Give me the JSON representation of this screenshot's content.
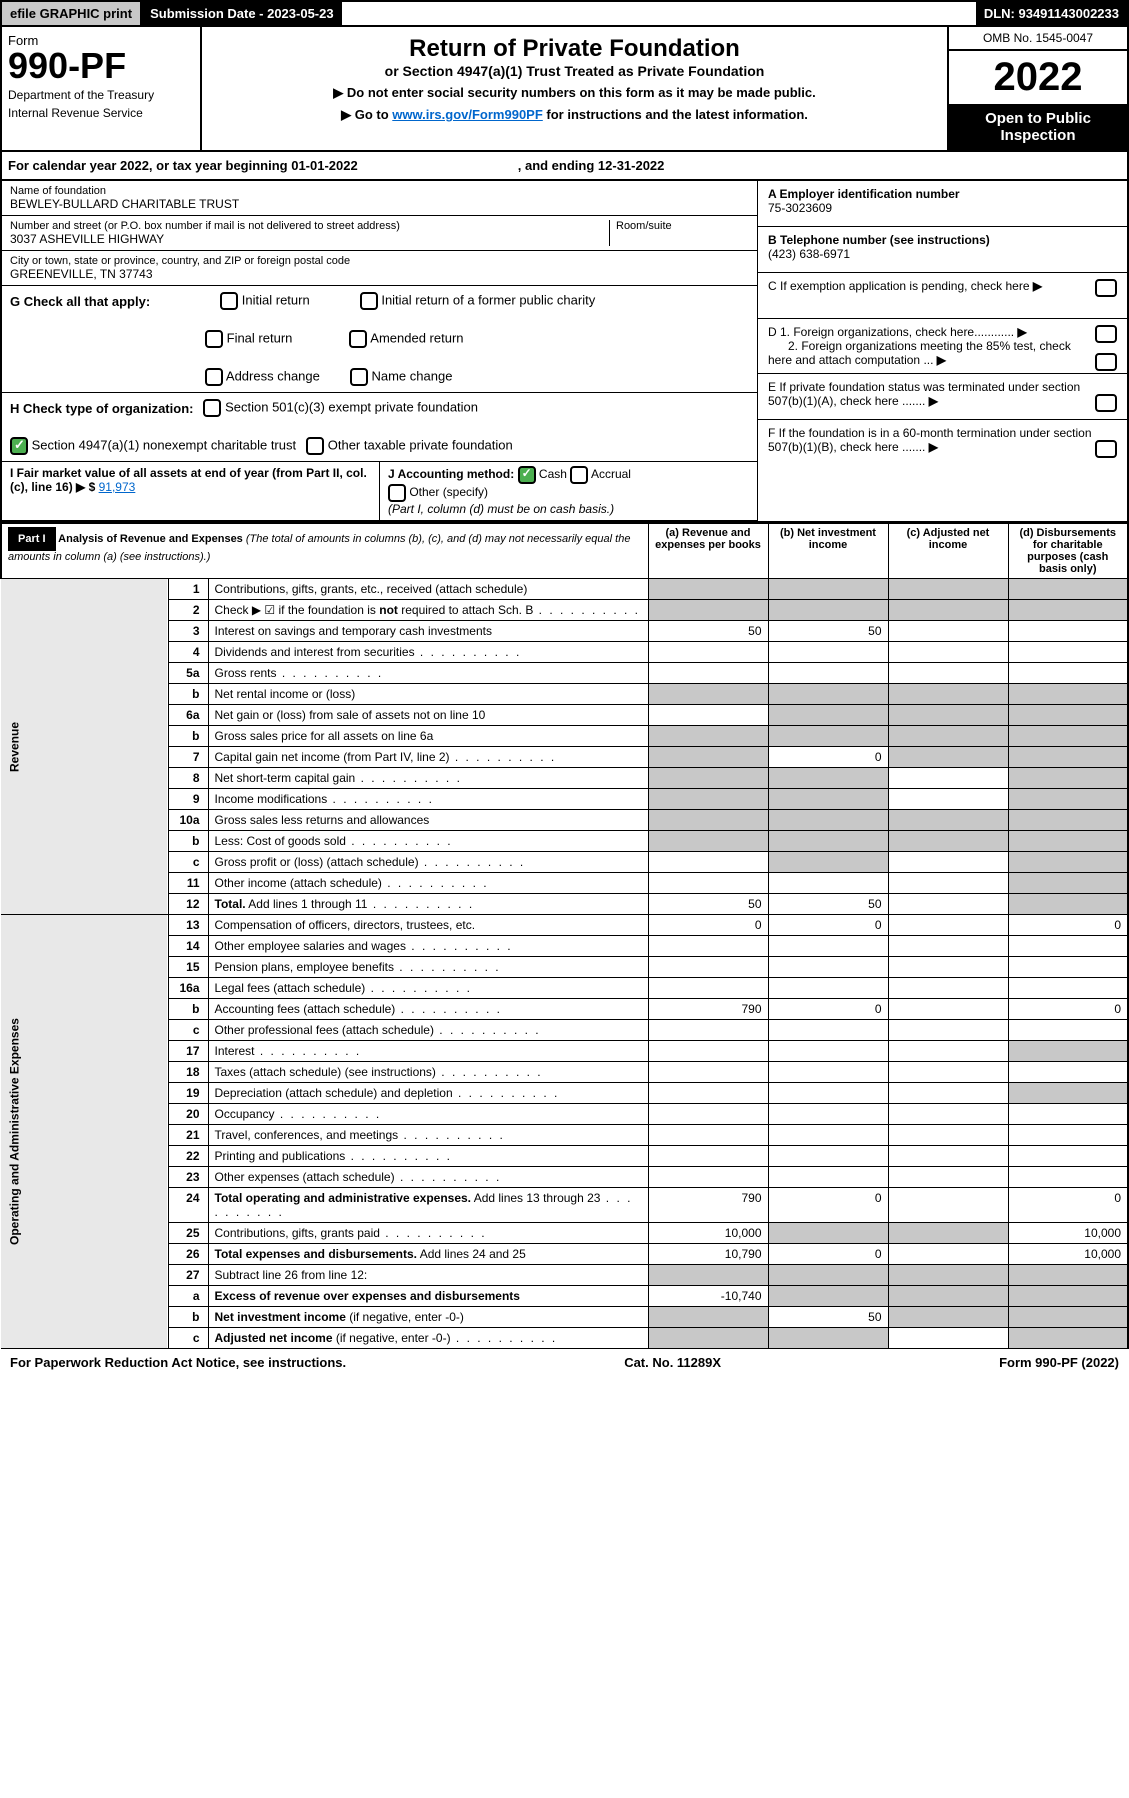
{
  "top": {
    "efile": "efile GRAPHIC print",
    "submission_label": "Submission Date - 2023-05-23",
    "dln": "DLN: 93491143002233"
  },
  "header": {
    "form_word": "Form",
    "form_number": "990-PF",
    "dept1": "Department of the Treasury",
    "dept2": "Internal Revenue Service",
    "title": "Return of Private Foundation",
    "subtitle": "or Section 4947(a)(1) Trust Treated as Private Foundation",
    "note1": "▶ Do not enter social security numbers on this form as it may be made public.",
    "note2_pre": "▶ Go to ",
    "note2_link": "www.irs.gov/Form990PF",
    "note2_post": " for instructions and the latest information.",
    "omb": "OMB No. 1545-0047",
    "year": "2022",
    "open": "Open to Public Inspection"
  },
  "calyear": {
    "text": "For calendar year 2022, or tax year beginning 01-01-2022",
    "ending": ", and ending 12-31-2022"
  },
  "foundation": {
    "name_label": "Name of foundation",
    "name": "BEWLEY-BULLARD CHARITABLE TRUST",
    "addr_label": "Number and street (or P.O. box number if mail is not delivered to street address)",
    "addr": "3037 ASHEVILLE HIGHWAY",
    "room_label": "Room/suite",
    "city_label": "City or town, state or province, country, and ZIP or foreign postal code",
    "city": "GREENEVILLE, TN  37743"
  },
  "right": {
    "a_label": "A Employer identification number",
    "a_val": "75-3023609",
    "b_label": "B Telephone number (see instructions)",
    "b_val": "(423) 638-6971",
    "c_label": "C If exemption application is pending, check here",
    "d1": "D 1. Foreign organizations, check here............",
    "d2": "2. Foreign organizations meeting the 85% test, check here and attach computation ...",
    "e": "E  If private foundation status was terminated under section 507(b)(1)(A), check here .......",
    "f": "F  If the foundation is in a 60-month termination under section 507(b)(1)(B), check here ......."
  },
  "g": {
    "label": "G Check all that apply:",
    "opts": [
      "Initial return",
      "Final return",
      "Address change",
      "Initial return of a former public charity",
      "Amended return",
      "Name change"
    ]
  },
  "h": {
    "label": "H Check type of organization:",
    "opt1": "Section 501(c)(3) exempt private foundation",
    "opt2": "Section 4947(a)(1) nonexempt charitable trust",
    "opt3": "Other taxable private foundation"
  },
  "i": {
    "label": "I Fair market value of all assets at end of year (from Part II, col. (c), line 16)",
    "val": "91,973"
  },
  "j": {
    "label": "J Accounting method:",
    "cash": "Cash",
    "accrual": "Accrual",
    "other": "Other (specify)",
    "note": "(Part I, column (d) must be on cash basis.)"
  },
  "part1": {
    "label": "Part I",
    "title": "Analysis of Revenue and Expenses",
    "note": "(The total of amounts in columns (b), (c), and (d) may not necessarily equal the amounts in column (a) (see instructions).)",
    "col_a": "(a)   Revenue and expenses per books",
    "col_b": "(b)   Net investment income",
    "col_c": "(c)   Adjusted net income",
    "col_d": "(d)   Disbursements for charitable purposes (cash basis only)"
  },
  "side": {
    "revenue": "Revenue",
    "expenses": "Operating and Administrative Expenses"
  },
  "rows": [
    {
      "n": "1",
      "d": "Contributions, gifts, grants, etc., received (attach schedule)",
      "a": "",
      "b": "",
      "c": "",
      "dd": "",
      "ga": true,
      "gb": true,
      "gc": true,
      "gd": true
    },
    {
      "n": "2",
      "d": "Check ▶ ☑ if the foundation is <b>not</b> required to attach Sch. B",
      "a": "",
      "b": "",
      "c": "",
      "dd": "",
      "ga": true,
      "gb": true,
      "gc": true,
      "gd": true,
      "dots": true
    },
    {
      "n": "3",
      "d": "Interest on savings and temporary cash investments",
      "a": "50",
      "b": "50",
      "c": "",
      "dd": ""
    },
    {
      "n": "4",
      "d": "Dividends and interest from securities",
      "a": "",
      "b": "",
      "c": "",
      "dd": "",
      "dots": true
    },
    {
      "n": "5a",
      "d": "Gross rents",
      "a": "",
      "b": "",
      "c": "",
      "dd": "",
      "dots": true
    },
    {
      "n": "b",
      "d": "Net rental income or (loss)",
      "a": "",
      "b": "",
      "c": "",
      "dd": "",
      "ga": true,
      "gb": true,
      "gc": true,
      "gd": true
    },
    {
      "n": "6a",
      "d": "Net gain or (loss) from sale of assets not on line 10",
      "a": "",
      "b": "",
      "c": "",
      "dd": "",
      "gb": true,
      "gc": true,
      "gd": true
    },
    {
      "n": "b",
      "d": "Gross sales price for all assets on line 6a",
      "a": "",
      "b": "",
      "c": "",
      "dd": "",
      "ga": true,
      "gb": true,
      "gc": true,
      "gd": true
    },
    {
      "n": "7",
      "d": "Capital gain net income (from Part IV, line 2)",
      "a": "",
      "b": "0",
      "c": "",
      "dd": "",
      "ga": true,
      "gc": true,
      "gd": true,
      "dots": true
    },
    {
      "n": "8",
      "d": "Net short-term capital gain",
      "a": "",
      "b": "",
      "c": "",
      "dd": "",
      "ga": true,
      "gb": true,
      "gd": true,
      "dots": true
    },
    {
      "n": "9",
      "d": "Income modifications",
      "a": "",
      "b": "",
      "c": "",
      "dd": "",
      "ga": true,
      "gb": true,
      "gd": true,
      "dots": true
    },
    {
      "n": "10a",
      "d": "Gross sales less returns and allowances",
      "a": "",
      "b": "",
      "c": "",
      "dd": "",
      "ga": true,
      "gb": true,
      "gc": true,
      "gd": true
    },
    {
      "n": "b",
      "d": "Less: Cost of goods sold",
      "a": "",
      "b": "",
      "c": "",
      "dd": "",
      "ga": true,
      "gb": true,
      "gc": true,
      "gd": true,
      "dots": true
    },
    {
      "n": "c",
      "d": "Gross profit or (loss) (attach schedule)",
      "a": "",
      "b": "",
      "c": "",
      "dd": "",
      "gb": true,
      "gd": true,
      "dots": true
    },
    {
      "n": "11",
      "d": "Other income (attach schedule)",
      "a": "",
      "b": "",
      "c": "",
      "dd": "",
      "gd": true,
      "dots": true
    },
    {
      "n": "12",
      "d": "<b>Total.</b> Add lines 1 through 11",
      "a": "50",
      "b": "50",
      "c": "",
      "dd": "",
      "gd": true,
      "dots": true
    },
    {
      "n": "13",
      "d": "Compensation of officers, directors, trustees, etc.",
      "a": "0",
      "b": "0",
      "c": "",
      "dd": "0"
    },
    {
      "n": "14",
      "d": "Other employee salaries and wages",
      "a": "",
      "b": "",
      "c": "",
      "dd": "",
      "dots": true
    },
    {
      "n": "15",
      "d": "Pension plans, employee benefits",
      "a": "",
      "b": "",
      "c": "",
      "dd": "",
      "dots": true
    },
    {
      "n": "16a",
      "d": "Legal fees (attach schedule)",
      "a": "",
      "b": "",
      "c": "",
      "dd": "",
      "dots": true
    },
    {
      "n": "b",
      "d": "Accounting fees (attach schedule)",
      "a": "790",
      "b": "0",
      "c": "",
      "dd": "0",
      "dots": true
    },
    {
      "n": "c",
      "d": "Other professional fees (attach schedule)",
      "a": "",
      "b": "",
      "c": "",
      "dd": "",
      "dots": true
    },
    {
      "n": "17",
      "d": "Interest",
      "a": "",
      "b": "",
      "c": "",
      "dd": "",
      "gd": true,
      "dots": true
    },
    {
      "n": "18",
      "d": "Taxes (attach schedule) (see instructions)",
      "a": "",
      "b": "",
      "c": "",
      "dd": "",
      "dots": true
    },
    {
      "n": "19",
      "d": "Depreciation (attach schedule) and depletion",
      "a": "",
      "b": "",
      "c": "",
      "dd": "",
      "gd": true,
      "dots": true
    },
    {
      "n": "20",
      "d": "Occupancy",
      "a": "",
      "b": "",
      "c": "",
      "dd": "",
      "dots": true
    },
    {
      "n": "21",
      "d": "Travel, conferences, and meetings",
      "a": "",
      "b": "",
      "c": "",
      "dd": "",
      "dots": true
    },
    {
      "n": "22",
      "d": "Printing and publications",
      "a": "",
      "b": "",
      "c": "",
      "dd": "",
      "dots": true
    },
    {
      "n": "23",
      "d": "Other expenses (attach schedule)",
      "a": "",
      "b": "",
      "c": "",
      "dd": "",
      "dots": true
    },
    {
      "n": "24",
      "d": "<b>Total operating and administrative expenses.</b> Add lines 13 through 23",
      "a": "790",
      "b": "0",
      "c": "",
      "dd": "0",
      "dots": true
    },
    {
      "n": "25",
      "d": "Contributions, gifts, grants paid",
      "a": "10,000",
      "b": "",
      "c": "",
      "dd": "10,000",
      "gb": true,
      "gc": true,
      "dots": true
    },
    {
      "n": "26",
      "d": "<b>Total expenses and disbursements.</b> Add lines 24 and 25",
      "a": "10,790",
      "b": "0",
      "c": "",
      "dd": "10,000"
    },
    {
      "n": "27",
      "d": "Subtract line 26 from line 12:",
      "a": "",
      "b": "",
      "c": "",
      "dd": "",
      "ga": true,
      "gb": true,
      "gc": true,
      "gd": true
    },
    {
      "n": "a",
      "d": "<b>Excess of revenue over expenses and disbursements</b>",
      "a": "-10,740",
      "b": "",
      "c": "",
      "dd": "",
      "gb": true,
      "gc": true,
      "gd": true
    },
    {
      "n": "b",
      "d": "<b>Net investment income</b> (if negative, enter -0-)",
      "a": "",
      "b": "50",
      "c": "",
      "dd": "",
      "ga": true,
      "gc": true,
      "gd": true
    },
    {
      "n": "c",
      "d": "<b>Adjusted net income</b> (if negative, enter -0-)",
      "a": "",
      "b": "",
      "c": "",
      "dd": "",
      "ga": true,
      "gb": true,
      "gd": true,
      "dots": true
    }
  ],
  "footer": {
    "left": "For Paperwork Reduction Act Notice, see instructions.",
    "mid": "Cat. No. 11289X",
    "right": "Form 990-PF (2022)"
  }
}
